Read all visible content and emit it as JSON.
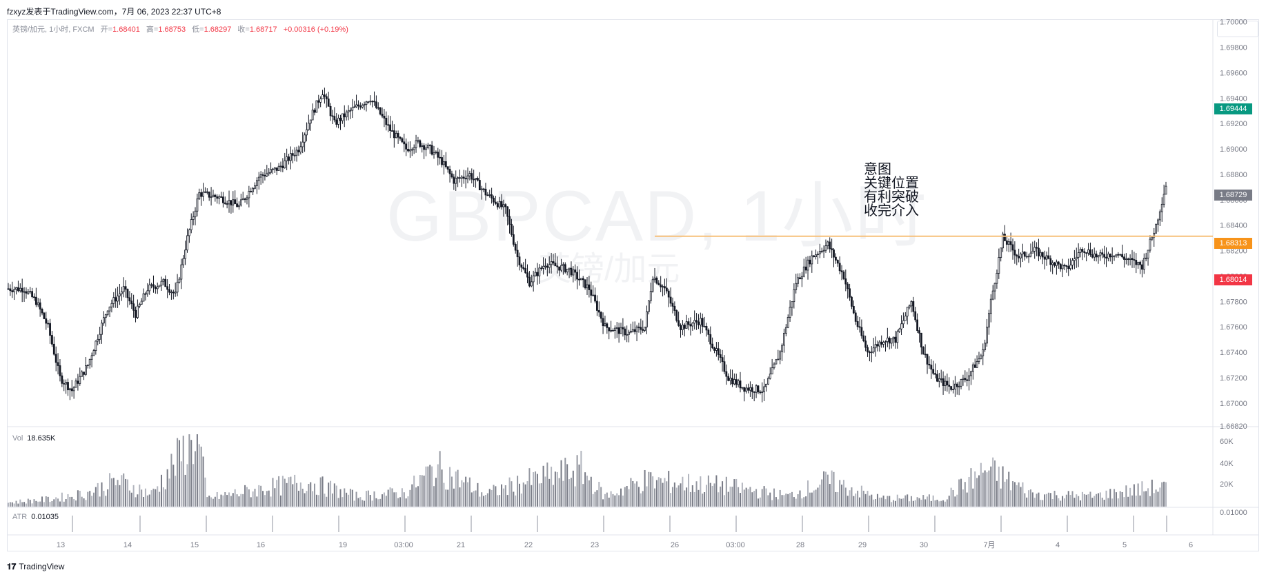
{
  "header": {
    "author_line": "fzxyz发表于TradingView.com，7月 06, 2023 22:37 UTC+8"
  },
  "legend": {
    "symbol": "英镑/加元, 1小时, FXCM",
    "open_label": "开=",
    "open": "1.68401",
    "high_label": "高=",
    "high": "1.68753",
    "low_label": "低=",
    "low": "1.68297",
    "close_label": "收=",
    "close": "1.68717",
    "change": "+0.00316 (+0.19%)"
  },
  "watermark": {
    "symbol": "GBPCAD, 1小时",
    "name": "英镑/加元"
  },
  "annotation": {
    "lines": [
      "意图",
      "关键位置",
      "有利突破",
      "收完介入"
    ]
  },
  "price_tags": [
    {
      "value": "1.69444",
      "color": "#089981"
    },
    {
      "value": "1.68729",
      "color": "#787b86"
    },
    {
      "value": "1.68313",
      "color": "#f7931a"
    },
    {
      "value": "1.68014",
      "color": "#f23645"
    }
  ],
  "volume": {
    "label": "Vol",
    "value": "18.635K",
    "axis": [
      "60K",
      "40K",
      "20K"
    ]
  },
  "atr": {
    "label": "ATR",
    "value": "0.01035",
    "axis": [
      "0.01000"
    ]
  },
  "footer": {
    "brand": "TradingView"
  },
  "chart_data": {
    "type": "candlestick",
    "title": "GBPCAD, 1小时",
    "y_ticks": [
      1.7,
      1.698,
      1.696,
      1.694,
      1.692,
      1.69,
      1.688,
      1.686,
      1.684,
      1.682,
      1.68,
      1.678,
      1.676,
      1.674,
      1.672,
      1.67,
      1.6682
    ],
    "y_tick_labels": [
      "1.70000",
      "1.69800",
      "1.69600",
      "1.69400",
      "1.69200",
      "1.69000",
      "1.68800",
      "1.68600",
      "1.68400",
      "1.68200",
      "1.68000",
      "1.67800",
      "1.67600",
      "1.67400",
      "1.67200",
      "1.67000",
      "1.66820"
    ],
    "ylim": [
      1.6682,
      1.7002
    ],
    "x_tick_labels": [
      "13",
      "14",
      "15",
      "16",
      "19",
      "03:00",
      "21",
      "22",
      "23",
      "26",
      "03:00",
      "28",
      "29",
      "30",
      "7月",
      "4",
      "5",
      "6"
    ],
    "horizontal_line": {
      "value": 1.68313,
      "color": "#f7c07a"
    },
    "price_path": [
      [
        0,
        1.679
      ],
      [
        8,
        1.679
      ],
      [
        14,
        1.678
      ],
      [
        20,
        1.676
      ],
      [
        26,
        1.672
      ],
      [
        32,
        1.671
      ],
      [
        40,
        1.673
      ],
      [
        50,
        1.6775
      ],
      [
        58,
        1.679
      ],
      [
        64,
        1.677
      ],
      [
        70,
        1.679
      ],
      [
        78,
        1.6795
      ],
      [
        84,
        1.6785
      ],
      [
        90,
        1.683
      ],
      [
        96,
        1.6865
      ],
      [
        106,
        1.6862
      ],
      [
        116,
        1.6855
      ],
      [
        126,
        1.6878
      ],
      [
        136,
        1.6885
      ],
      [
        146,
        1.69
      ],
      [
        152,
        1.6925
      ],
      [
        158,
        1.6945
      ],
      [
        164,
        1.692
      ],
      [
        172,
        1.693
      ],
      [
        182,
        1.694
      ],
      [
        192,
        1.6915
      ],
      [
        200,
        1.69
      ],
      [
        206,
        1.6905
      ],
      [
        212,
        1.69
      ],
      [
        218,
        1.689
      ],
      [
        224,
        1.6875
      ],
      [
        232,
        1.688
      ],
      [
        240,
        1.6865
      ],
      [
        250,
        1.6852
      ],
      [
        256,
        1.6815
      ],
      [
        262,
        1.6795
      ],
      [
        270,
        1.681
      ],
      [
        282,
        1.6805
      ],
      [
        292,
        1.679
      ],
      [
        300,
        1.676
      ],
      [
        312,
        1.6755
      ],
      [
        320,
        1.676
      ],
      [
        324,
        1.68
      ],
      [
        330,
        1.679
      ],
      [
        338,
        1.676
      ],
      [
        348,
        1.6765
      ],
      [
        356,
        1.674
      ],
      [
        362,
        1.672
      ],
      [
        370,
        1.6712
      ],
      [
        380,
        1.671
      ],
      [
        388,
        1.674
      ],
      [
        396,
        1.6795
      ],
      [
        404,
        1.6815
      ],
      [
        412,
        1.6825
      ],
      [
        420,
        1.68
      ],
      [
        426,
        1.6765
      ],
      [
        432,
        1.674
      ],
      [
        440,
        1.675
      ],
      [
        446,
        1.675
      ],
      [
        454,
        1.678
      ],
      [
        460,
        1.674
      ],
      [
        466,
        1.672
      ],
      [
        474,
        1.6712
      ],
      [
        482,
        1.672
      ],
      [
        490,
        1.674
      ],
      [
        494,
        1.678
      ],
      [
        500,
        1.683
      ],
      [
        508,
        1.6815
      ],
      [
        516,
        1.682
      ],
      [
        524,
        1.6812
      ],
      [
        532,
        1.6805
      ],
      [
        540,
        1.6822
      ],
      [
        548,
        1.6815
      ],
      [
        556,
        1.6818
      ],
      [
        564,
        1.6812
      ],
      [
        570,
        1.6808
      ],
      [
        577,
        1.684
      ],
      [
        582,
        1.6872
      ]
    ],
    "volume_path": [
      [
        0,
        4
      ],
      [
        20,
        7
      ],
      [
        40,
        13
      ],
      [
        55,
        25
      ],
      [
        72,
        12
      ],
      [
        95,
        70
      ],
      [
        100,
        8
      ],
      [
        130,
        18
      ],
      [
        150,
        24
      ],
      [
        175,
        10
      ],
      [
        200,
        14
      ],
      [
        215,
        38
      ],
      [
        240,
        12
      ],
      [
        260,
        24
      ],
      [
        288,
        36
      ],
      [
        300,
        10
      ],
      [
        320,
        25
      ],
      [
        360,
        20
      ],
      [
        392,
        10
      ],
      [
        412,
        25
      ],
      [
        438,
        8
      ],
      [
        470,
        8
      ],
      [
        492,
        36
      ],
      [
        515,
        12
      ],
      [
        545,
        10
      ],
      [
        575,
        18
      ]
    ],
    "atr_value": 0.01035
  }
}
